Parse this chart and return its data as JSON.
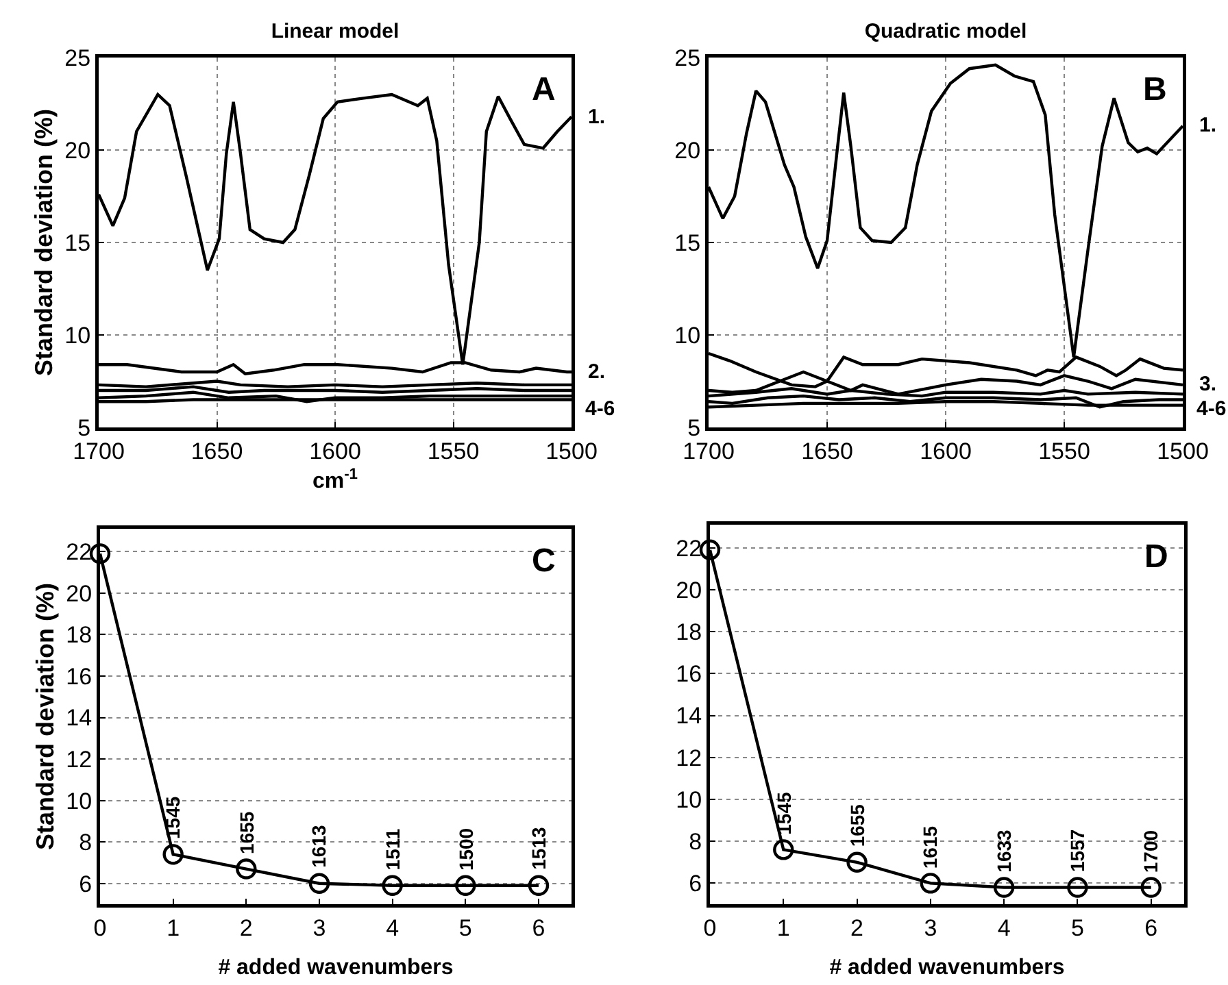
{
  "chart_data": [
    {
      "type": "line",
      "title": "Linear model",
      "xlabel": "cm$^{-1}$",
      "ylabel": "Standard deviation (%)",
      "xlim": [
        1700,
        1500
      ],
      "xticks": [
        1700,
        1650,
        1600,
        1550,
        1500
      ],
      "ylim": [
        5,
        25
      ],
      "yticks": [
        5,
        10,
        15,
        20,
        25
      ],
      "grid": true,
      "series": [
        {
          "name": "1.",
          "color": "#000000",
          "x": [
            1700,
            1694,
            1689,
            1684,
            1675,
            1670,
            1663,
            1654,
            1649,
            1646,
            1643,
            1640,
            1636,
            1630,
            1622,
            1617,
            1611,
            1605,
            1599,
            1588,
            1576,
            1565,
            1561,
            1557,
            1552,
            1546,
            1539,
            1536,
            1531,
            1526,
            1520,
            1512,
            1506,
            1500
          ],
          "values": [
            17.6,
            15.9,
            17.4,
            21.0,
            23.0,
            22.4,
            18.6,
            13.5,
            15.2,
            19.8,
            22.6,
            19.8,
            15.7,
            15.2,
            15.0,
            15.7,
            18.6,
            21.7,
            22.6,
            22.8,
            23.0,
            22.4,
            22.8,
            20.5,
            13.8,
            8.4,
            15.0,
            21.0,
            22.9,
            21.7,
            20.3,
            20.1,
            21.0,
            21.8
          ]
        },
        {
          "name": "2.",
          "color": "#000000",
          "x": [
            1700,
            1688,
            1665,
            1650,
            1643,
            1638,
            1626,
            1613,
            1599,
            1576,
            1563,
            1551,
            1545,
            1534,
            1522,
            1515,
            1502,
            1500
          ],
          "values": [
            8.4,
            8.4,
            8.0,
            8.0,
            8.4,
            7.9,
            8.1,
            8.4,
            8.4,
            8.2,
            8.0,
            8.5,
            8.5,
            8.1,
            8.0,
            8.2,
            8.0,
            8.0
          ]
        },
        {
          "color": "#000000",
          "x": [
            1700,
            1680,
            1660,
            1650,
            1640,
            1620,
            1600,
            1580,
            1560,
            1540,
            1520,
            1500
          ],
          "values": [
            7.3,
            7.2,
            7.4,
            7.5,
            7.3,
            7.2,
            7.3,
            7.2,
            7.3,
            7.4,
            7.3,
            7.3
          ]
        },
        {
          "color": "#000000",
          "x": [
            1700,
            1680,
            1660,
            1645,
            1630,
            1612,
            1600,
            1580,
            1560,
            1540,
            1520,
            1500
          ],
          "values": [
            7.0,
            7.0,
            7.2,
            6.9,
            7.0,
            7.0,
            7.0,
            6.9,
            7.0,
            7.1,
            7.0,
            7.0
          ]
        },
        {
          "color": "#000000",
          "x": [
            1700,
            1680,
            1660,
            1645,
            1625,
            1612,
            1600,
            1580,
            1560,
            1540,
            1520,
            1500
          ],
          "values": [
            6.6,
            6.7,
            6.9,
            6.6,
            6.7,
            6.4,
            6.6,
            6.6,
            6.7,
            6.7,
            6.7,
            6.7
          ]
        },
        {
          "color": "#000000",
          "x": [
            1700,
            1680,
            1660,
            1640,
            1620,
            1600,
            1580,
            1560,
            1540,
            1520,
            1500
          ],
          "values": [
            6.4,
            6.4,
            6.5,
            6.5,
            6.5,
            6.5,
            6.5,
            6.5,
            6.5,
            6.5,
            6.5
          ]
        }
      ],
      "annotations": [
        "A",
        "4-6"
      ]
    },
    {
      "type": "line",
      "title": "Quadratic model",
      "xlim": [
        1700,
        1500
      ],
      "xticks": [
        1700,
        1650,
        1600,
        1550,
        1500
      ],
      "ylim": [
        5,
        25
      ],
      "yticks": [
        5,
        10,
        15,
        20,
        25
      ],
      "grid": true,
      "series": [
        {
          "name": "1.",
          "color": "#000000",
          "x": [
            1700,
            1694,
            1689,
            1684,
            1680,
            1676,
            1672,
            1668,
            1664,
            1659,
            1654,
            1650,
            1646,
            1643,
            1640,
            1636,
            1631,
            1623,
            1617,
            1612,
            1606,
            1598,
            1590,
            1579,
            1571,
            1563,
            1558,
            1554,
            1546,
            1540,
            1534,
            1529,
            1523,
            1519,
            1515,
            1511,
            1500
          ],
          "values": [
            18.0,
            16.3,
            17.5,
            20.9,
            23.2,
            22.6,
            20.9,
            19.2,
            18.0,
            15.3,
            13.6,
            15.1,
            19.7,
            23.1,
            20.2,
            15.8,
            15.1,
            15.0,
            15.8,
            19.2,
            22.1,
            23.6,
            24.4,
            24.6,
            24.0,
            23.7,
            21.9,
            16.5,
            8.8,
            14.6,
            20.2,
            22.8,
            20.4,
            19.9,
            20.1,
            19.8,
            21.3
          ]
        },
        {
          "color": "#000000",
          "x": [
            1700,
            1691,
            1680,
            1665,
            1655,
            1650,
            1643,
            1635,
            1620,
            1610,
            1590,
            1570,
            1562,
            1557,
            1552,
            1545,
            1535,
            1528,
            1524,
            1518,
            1508,
            1500
          ],
          "values": [
            9.0,
            8.6,
            8.0,
            7.3,
            7.2,
            7.5,
            8.8,
            8.4,
            8.4,
            8.7,
            8.5,
            8.1,
            7.8,
            8.1,
            8.0,
            8.8,
            8.3,
            7.8,
            8.1,
            8.7,
            8.2,
            8.1
          ]
        },
        {
          "name": "3.",
          "color": "#000000",
          "x": [
            1700,
            1690,
            1680,
            1660,
            1650,
            1640,
            1635,
            1620,
            1600,
            1585,
            1570,
            1560,
            1550,
            1540,
            1530,
            1520,
            1500
          ],
          "values": [
            7.0,
            6.9,
            7.0,
            8.0,
            7.5,
            7.0,
            7.3,
            6.8,
            7.3,
            7.6,
            7.5,
            7.3,
            7.8,
            7.5,
            7.1,
            7.6,
            7.3
          ]
        },
        {
          "color": "#000000",
          "x": [
            1700,
            1680,
            1665,
            1650,
            1640,
            1625,
            1610,
            1600,
            1580,
            1560,
            1550,
            1540,
            1520,
            1500
          ],
          "values": [
            6.7,
            6.9,
            7.1,
            6.8,
            7.0,
            6.8,
            6.7,
            6.9,
            6.9,
            6.8,
            7.0,
            6.8,
            6.9,
            6.8
          ]
        },
        {
          "color": "#000000",
          "x": [
            1700,
            1690,
            1675,
            1660,
            1645,
            1630,
            1615,
            1600,
            1580,
            1560,
            1545,
            1535,
            1525,
            1510,
            1500
          ],
          "values": [
            6.4,
            6.3,
            6.6,
            6.7,
            6.5,
            6.6,
            6.4,
            6.6,
            6.6,
            6.5,
            6.6,
            6.1,
            6.4,
            6.5,
            6.5
          ]
        },
        {
          "color": "#000000",
          "x": [
            1700,
            1680,
            1660,
            1640,
            1620,
            1600,
            1580,
            1560,
            1540,
            1520,
            1500
          ],
          "values": [
            6.1,
            6.2,
            6.3,
            6.3,
            6.3,
            6.4,
            6.4,
            6.3,
            6.2,
            6.2,
            6.2
          ]
        }
      ],
      "annotations": [
        "B",
        "4-6"
      ]
    },
    {
      "type": "line",
      "xlabel": "# added wavenumbers",
      "ylabel": "Standard deviation (%)",
      "x": [
        0,
        1,
        2,
        3,
        4,
        5,
        6
      ],
      "xlim": [
        0,
        6.45
      ],
      "xticks": [
        0,
        1,
        2,
        3,
        4,
        5,
        6
      ],
      "ylim": [
        5,
        23.1
      ],
      "yticks": [
        6,
        8,
        10,
        12,
        14,
        16,
        18,
        20,
        22
      ],
      "grid": "y",
      "marker": "circle",
      "series": [
        {
          "color": "#000000",
          "values": [
            21.9,
            7.4,
            6.7,
            6.0,
            5.9,
            5.9,
            5.9
          ]
        }
      ],
      "annotations": [
        "C",
        {
          "text": "1545",
          "x": 1,
          "y": 7.4
        },
        {
          "text": "1655",
          "x": 2,
          "y": 6.7
        },
        {
          "text": "1613",
          "x": 3,
          "y": 6.0
        },
        {
          "text": "1511",
          "x": 4,
          "y": 5.9
        },
        {
          "text": "1500",
          "x": 5,
          "y": 5.9
        },
        {
          "text": "1513",
          "x": 6,
          "y": 5.9
        }
      ]
    },
    {
      "type": "line",
      "xlabel": "# added wavenumbers",
      "x": [
        0,
        1,
        2,
        3,
        4,
        5,
        6
      ],
      "xlim": [
        0,
        6.45
      ],
      "xticks": [
        0,
        1,
        2,
        3,
        4,
        5,
        6
      ],
      "ylim": [
        5,
        23.1
      ],
      "yticks": [
        6,
        8,
        10,
        12,
        14,
        16,
        18,
        20,
        22
      ],
      "grid": "y",
      "marker": "circle",
      "series": [
        {
          "color": "#000000",
          "values": [
            21.9,
            7.6,
            7.0,
            6.0,
            5.8,
            5.8,
            5.8
          ]
        }
      ],
      "annotations": [
        "D",
        {
          "text": "1545",
          "x": 1,
          "y": 7.6
        },
        {
          "text": "1655",
          "x": 2,
          "y": 7.0
        },
        {
          "text": "1615",
          "x": 3,
          "y": 6.0
        },
        {
          "text": "1633",
          "x": 4,
          "y": 5.8
        },
        {
          "text": "1557",
          "x": 5,
          "y": 5.8
        },
        {
          "text": "1700",
          "x": 6,
          "y": 5.8
        }
      ]
    }
  ]
}
